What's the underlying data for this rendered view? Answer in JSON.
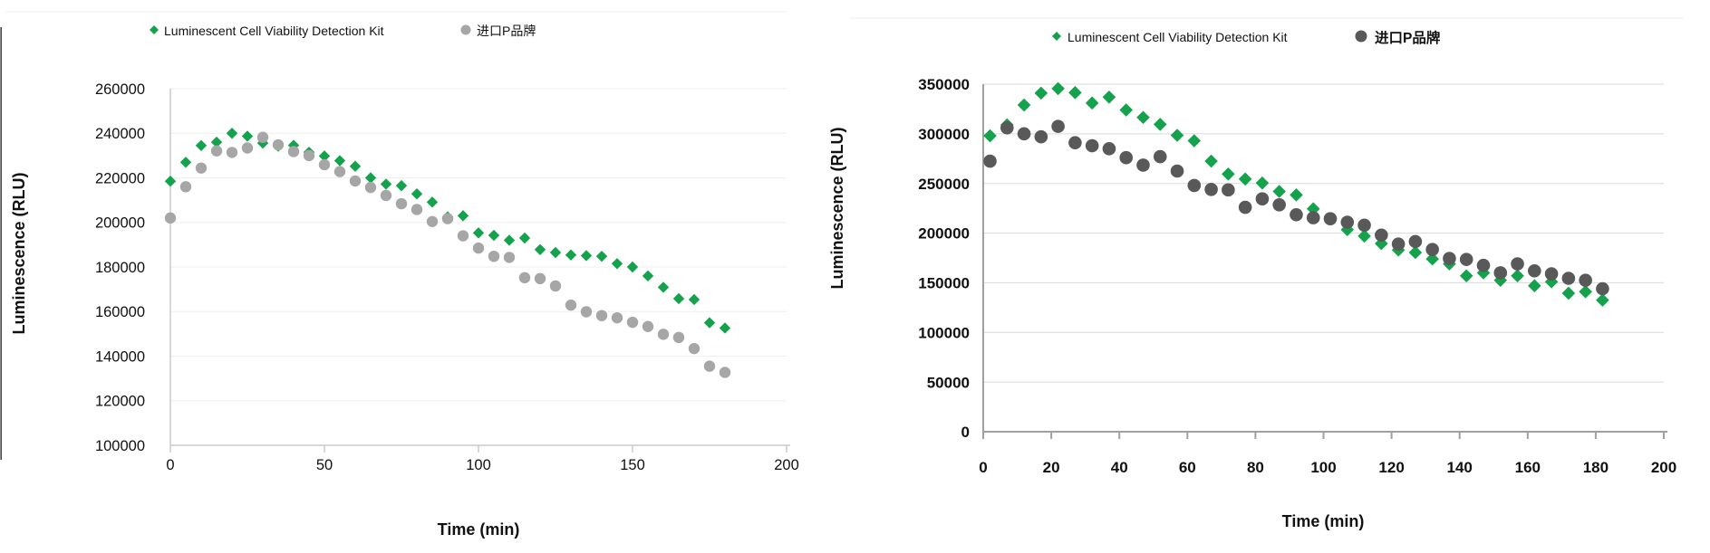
{
  "page": {
    "background": "#ffffff"
  },
  "chart_data": [
    {
      "id": "left-chart",
      "type": "scatter",
      "title": "",
      "xlabel": "Time (min)",
      "ylabel": "Luminescence (RLU)",
      "xlim": [
        0,
        200
      ],
      "ylim": [
        100000,
        260000
      ],
      "x_ticks": [
        0,
        50,
        100,
        150,
        200
      ],
      "y_ticks": [
        100000,
        120000,
        140000,
        160000,
        180000,
        200000,
        220000,
        240000,
        260000
      ],
      "grid": true,
      "legend_position": "top",
      "bold_tick_labels": false,
      "x": [
        0,
        5,
        10,
        15,
        20,
        25,
        30,
        35,
        40,
        45,
        50,
        55,
        60,
        65,
        70,
        75,
        80,
        85,
        90,
        95,
        100,
        105,
        110,
        115,
        120,
        125,
        130,
        135,
        140,
        145,
        150,
        155,
        160,
        165,
        170,
        175,
        180
      ],
      "series": [
        {
          "name": "Luminescent Cell Viability Detection Kit",
          "marker": "diamond",
          "color": "#15A24D",
          "legend_text_color": "#1a1a1a",
          "legend_text_bold": false,
          "values": [
            218500,
            227000,
            234500,
            236000,
            240000,
            238700,
            235600,
            234200,
            234600,
            231500,
            229800,
            227700,
            225200,
            220000,
            217200,
            216500,
            212800,
            209100,
            202500,
            203000,
            195300,
            194200,
            192000,
            193000,
            187800,
            186500,
            185400,
            185100,
            184800,
            181500,
            180000,
            176000,
            170900,
            165800,
            165400,
            155000,
            152600
          ]
        },
        {
          "name": "进口P品牌",
          "marker": "circle",
          "color": "#A6A6A6",
          "legend_text_color": "#898989",
          "legend_text_bold": false,
          "values": [
            202000,
            216000,
            224400,
            232100,
            231400,
            233400,
            238200,
            234800,
            231800,
            230000,
            225900,
            222800,
            218600,
            215700,
            212100,
            208400,
            205800,
            200400,
            201700,
            194000,
            188500,
            184800,
            184300,
            175200,
            174800,
            171500,
            162900,
            159900,
            158200,
            157200,
            155200,
            153300,
            149800,
            148400,
            143400,
            135500,
            132700
          ]
        }
      ]
    },
    {
      "id": "right-chart",
      "type": "scatter",
      "title": "",
      "xlabel": "Time  (min)",
      "ylabel": "Luminescence  (RLU)",
      "xlim": [
        0,
        200
      ],
      "ylim": [
        0,
        350000
      ],
      "x_ticks": [
        0,
        20,
        40,
        60,
        80,
        100,
        120,
        140,
        160,
        180,
        200
      ],
      "y_ticks": [
        0,
        50000,
        100000,
        150000,
        200000,
        250000,
        300000,
        350000
      ],
      "grid": true,
      "legend_position": "top",
      "bold_tick_labels": true,
      "x": [
        2,
        7,
        12,
        17,
        22,
        27,
        32,
        37,
        42,
        47,
        52,
        57,
        62,
        67,
        72,
        77,
        82,
        87,
        92,
        97,
        102,
        107,
        112,
        117,
        122,
        127,
        132,
        137,
        142,
        147,
        152,
        157,
        162,
        167,
        172,
        177,
        182
      ],
      "series": [
        {
          "name": "Luminescent Cell Viability Detection Kit",
          "marker": "diamond",
          "color": "#15A24D",
          "legend_text_color": "#1a1a1a",
          "legend_text_bold": false,
          "values": [
            298000,
            309000,
            329000,
            341000,
            345500,
            341500,
            331000,
            337000,
            324000,
            316500,
            309500,
            298500,
            293000,
            272500,
            259500,
            254500,
            250500,
            242000,
            238500,
            224500,
            214500,
            203500,
            197000,
            189500,
            183000,
            180500,
            174000,
            169000,
            157000,
            160000,
            152500,
            157000,
            147000,
            151000,
            139500,
            141000,
            132500
          ]
        },
        {
          "name": "进口P品牌",
          "marker": "circle",
          "color": "#595959",
          "legend_text_color": "#111111",
          "legend_text_bold": true,
          "values": [
            272500,
            306000,
            300000,
            297000,
            307500,
            291000,
            288000,
            285000,
            276000,
            268500,
            277000,
            262500,
            248000,
            244000,
            243500,
            226000,
            234500,
            228500,
            218500,
            215500,
            214500,
            211000,
            208000,
            198000,
            189000,
            191500,
            183500,
            174500,
            173500,
            167500,
            160000,
            169000,
            162000,
            159000,
            154500,
            152500,
            144000
          ]
        }
      ]
    }
  ]
}
